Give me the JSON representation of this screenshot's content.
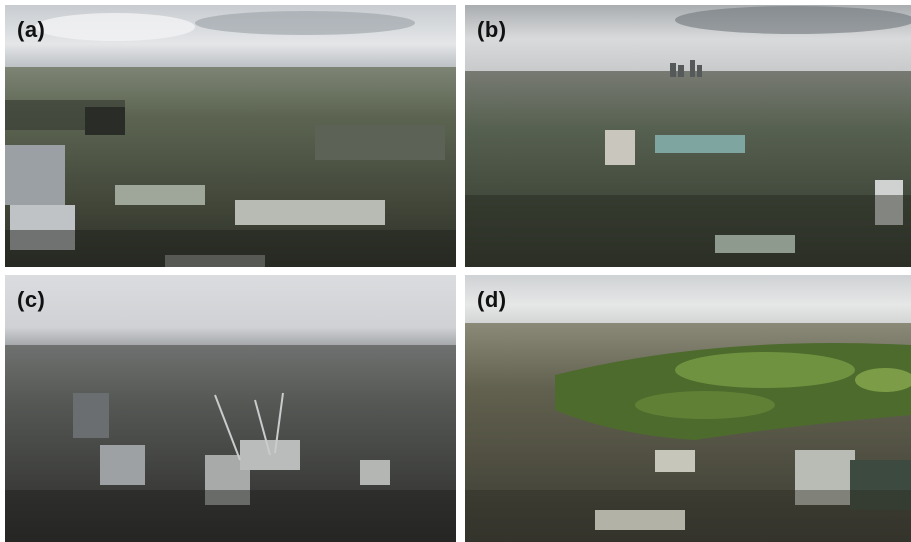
{
  "figure": {
    "panels": [
      {
        "label": "(a)"
      },
      {
        "label": "(b)"
      },
      {
        "label": "(c)"
      },
      {
        "label": "(d)"
      }
    ]
  },
  "colors": {
    "background": "#ffffff",
    "label_text": "#111111"
  }
}
